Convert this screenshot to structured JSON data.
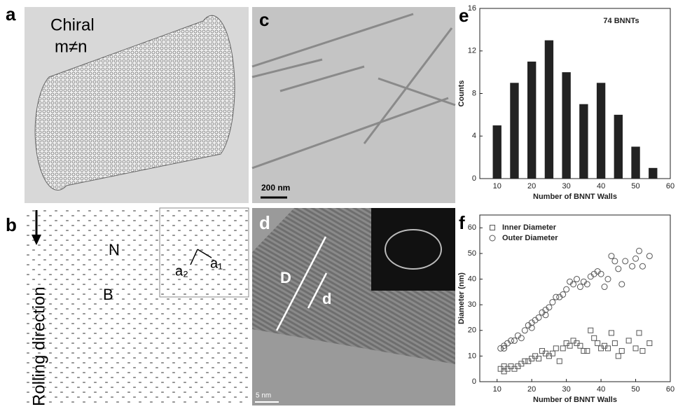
{
  "panels": {
    "a": {
      "label": "a",
      "texts": [
        "Chiral",
        "m≠n"
      ]
    },
    "b": {
      "label": "b",
      "texts": [
        "N",
        "B",
        "a₂",
        "a₁",
        "Rolling direction"
      ]
    },
    "c": {
      "label": "c",
      "scale_bar": "200 nm"
    },
    "d": {
      "label": "d",
      "texts": [
        "D",
        "d"
      ],
      "scale_bar": "5 nm"
    },
    "e": {
      "label": "e"
    },
    "f": {
      "label": "f"
    }
  },
  "chart_data": [
    {
      "type": "bar",
      "annotation": "74 BNNTs",
      "x_label": "Number of BNNT Walls",
      "y_label": "Counts",
      "x": [
        10,
        15,
        20,
        25,
        30,
        35,
        40,
        45,
        50,
        55
      ],
      "values": [
        5,
        9,
        11,
        13,
        10,
        7,
        9,
        6,
        3,
        1
      ],
      "color": "#222222",
      "xlim": [
        5,
        60
      ],
      "xticks": [
        10,
        20,
        30,
        40,
        50,
        60
      ],
      "ylim": [
        0,
        16
      ],
      "yticks": [
        0,
        4,
        8,
        12,
        16
      ]
    },
    {
      "type": "scatter",
      "x_label": "Number of BNNT Walls",
      "y_label": "Diameter (nm)",
      "legend": "upper-left",
      "xlim": [
        5,
        60
      ],
      "xticks": [
        10,
        20,
        30,
        40,
        50,
        60
      ],
      "ylim": [
        0,
        65
      ],
      "yticks": [
        0,
        10,
        20,
        30,
        40,
        50,
        60
      ],
      "series": [
        {
          "name": "Inner Diameter",
          "marker": "square",
          "color": "#555555",
          "x": [
            11,
            12,
            12,
            13,
            14,
            15,
            16,
            17,
            18,
            19,
            20,
            21,
            22,
            23,
            24,
            25,
            26,
            27,
            28,
            29,
            30,
            31,
            32,
            33,
            34,
            35,
            36,
            37,
            38,
            39,
            40,
            41,
            42,
            43,
            44,
            45,
            46,
            48,
            50,
            51,
            52,
            54
          ],
          "values": [
            5,
            6,
            4,
            5,
            6,
            5,
            6,
            7,
            8,
            8,
            9,
            10,
            9,
            12,
            11,
            10,
            11,
            13,
            8,
            13,
            15,
            14,
            16,
            15,
            14,
            12,
            12,
            20,
            17,
            15,
            13,
            14,
            13,
            19,
            15,
            10,
            12,
            16,
            13,
            19,
            12,
            15
          ]
        },
        {
          "name": "Outer Diameter",
          "marker": "circle",
          "color": "#555555",
          "x": [
            11,
            12,
            12,
            13,
            14,
            15,
            16,
            17,
            18,
            19,
            20,
            20,
            21,
            22,
            23,
            24,
            24,
            25,
            26,
            27,
            28,
            29,
            30,
            31,
            32,
            33,
            34,
            35,
            36,
            37,
            38,
            39,
            40,
            41,
            42,
            43,
            44,
            45,
            46,
            47,
            49,
            50,
            51,
            52,
            54
          ],
          "values": [
            13,
            14,
            13,
            15,
            16,
            16,
            18,
            17,
            20,
            22,
            23,
            21,
            24,
            25,
            27,
            26,
            28,
            29,
            31,
            33,
            33,
            34,
            36,
            39,
            38,
            40,
            37,
            39,
            38,
            41,
            42,
            43,
            42,
            37,
            40,
            49,
            47,
            44,
            38,
            47,
            45,
            48,
            51,
            45,
            49
          ]
        }
      ]
    }
  ]
}
